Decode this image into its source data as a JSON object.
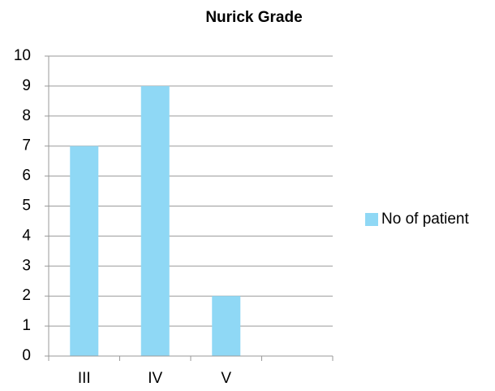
{
  "chart_data": {
    "type": "bar",
    "title": "Nurick Grade",
    "categories": [
      "III",
      "IV",
      "V",
      null
    ],
    "series": [
      {
        "name": "No of patient",
        "color": "#8fd8f5",
        "values": [
          7,
          9,
          2,
          null
        ]
      }
    ],
    "ylim": [
      0,
      10
    ],
    "yticks": [
      0,
      1,
      2,
      3,
      4,
      5,
      6,
      7,
      8,
      9,
      10
    ],
    "grid": true,
    "legend": "right"
  }
}
